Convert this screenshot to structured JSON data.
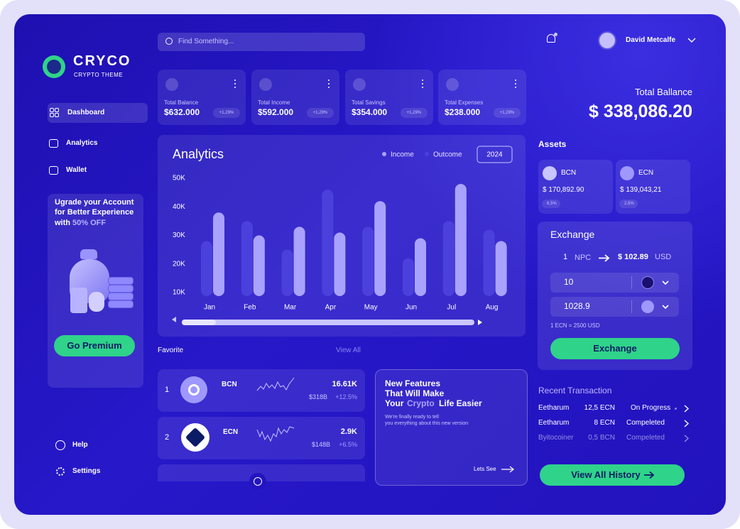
{
  "brand": {
    "name": "CRYCO",
    "tagline": "CRYPTO THEME"
  },
  "nav": [
    "Dashboard",
    "Analytics",
    "Wallet"
  ],
  "promo": {
    "line1": "Ugrade your Account",
    "line2": "for Better Experience",
    "line3": "with",
    "highlight": "50% OFF",
    "button": "Go Premium"
  },
  "footer_nav": [
    "Help",
    "Settings"
  ],
  "search_placeholder": "Find Something...",
  "stats": [
    {
      "label": "Total Balance",
      "value": "$632.000",
      "change": "+1,29%"
    },
    {
      "label": "Total Income",
      "value": "$592.000",
      "change": "+1,29%"
    },
    {
      "label": "Total Savings",
      "value": "$354.000",
      "change": "+1,29%"
    },
    {
      "label": "Total Expenses",
      "value": "$238.000",
      "change": "+1,29%"
    }
  ],
  "chart_data": {
    "type": "bar",
    "title": "Analytics",
    "filter": "2024",
    "categories": [
      "Jan",
      "Feb",
      "Mar",
      "Apr",
      "May",
      "Jun",
      "Jul",
      "Aug"
    ],
    "series": [
      {
        "name": "Income",
        "color": "#a9a3ff",
        "values": [
          38000,
          30000,
          33000,
          31000,
          42000,
          29000,
          48000,
          28000
        ]
      },
      {
        "name": "Outcome",
        "color": "#4c40dd",
        "values": [
          28000,
          35000,
          25000,
          46000,
          33000,
          22000,
          35000,
          32000
        ]
      }
    ],
    "ylim": [
      10000,
      50000
    ],
    "yticks": [
      {
        "value": 50000,
        "label": "50K"
      },
      {
        "value": 40000,
        "label": "40K"
      },
      {
        "value": 30000,
        "label": "30K"
      },
      {
        "value": 20000,
        "label": "20K"
      },
      {
        "value": 10000,
        "label": "10K"
      }
    ],
    "grid": false
  },
  "favorite": {
    "title": "Favorite",
    "view_all": "View All",
    "items": [
      {
        "rank": "1",
        "symbol": "BCN",
        "value": "16.61K",
        "cap": "$318B",
        "change": "+12.5%"
      },
      {
        "rank": "2",
        "symbol": "ECN",
        "value": "2.9K",
        "cap": "$148B",
        "change": "+6.5%"
      }
    ]
  },
  "news": {
    "line1": "New Features",
    "line2": "That Will Make",
    "line3a": "Your",
    "line3b": "Crypto",
    "line3c": "Life Easier",
    "desc1": "We're finally ready to tell",
    "desc2": "you everything about this new version",
    "link": "Lets See"
  },
  "user": {
    "name": "David Metcalfe"
  },
  "total_balance": {
    "label": "Total Ballance",
    "value": "$ 338,086.20"
  },
  "assets": {
    "title": "Assets",
    "items": [
      {
        "symbol": "BCN",
        "amount": "$ 170,892.90",
        "change": "6,5%"
      },
      {
        "symbol": "ECN",
        "amount": "$ 139,043,21",
        "change": "2,5%"
      }
    ]
  },
  "exchange": {
    "title": "Exchange",
    "from_amount": "1",
    "from_unit": "NPC",
    "to_amount": "$ 102.89",
    "to_unit": "USD",
    "input1": "10",
    "input2": "1028.9",
    "note": "1 ECN = 2500 USD",
    "button": "Exchange"
  },
  "recent": {
    "title": "Recent Transaction",
    "rows": [
      [
        "Eetharum",
        "12,5 ECN",
        "On Progress"
      ],
      [
        "Eetharum",
        "8 ECN",
        "Compeleted"
      ],
      [
        "Byitocoiner",
        "0,5 BCN",
        "Compeleted"
      ]
    ],
    "button": "View All History"
  }
}
